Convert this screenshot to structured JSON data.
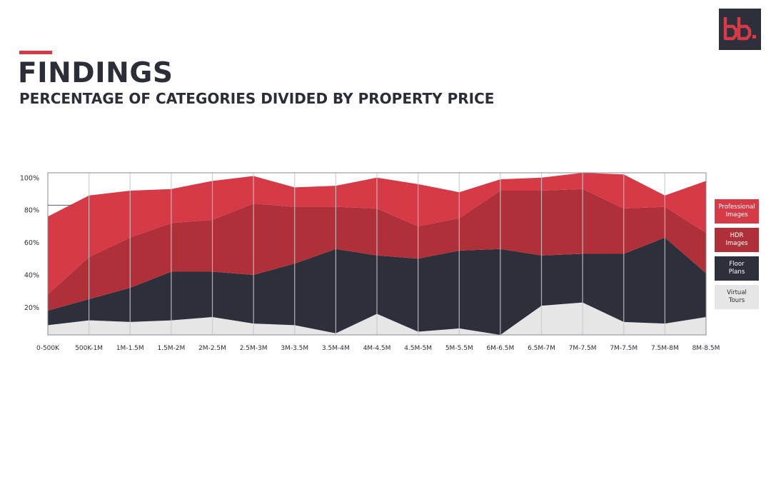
{
  "header": {
    "title": "FINDINGS",
    "subtitle": "PERCENTAGE OF CATEGORIES DIVIDED BY PROPERTY PRICE",
    "logo_text": "bb.",
    "accent_color": "#d63a47"
  },
  "chart_data": {
    "type": "area",
    "stacked": true,
    "title": "",
    "xlabel": "",
    "ylabel": "",
    "ylim": [
      3,
      103
    ],
    "yticks": [
      20,
      40,
      60,
      80,
      100
    ],
    "ytick_labels": [
      "20%",
      "40%",
      "60%",
      "80%",
      "100%"
    ],
    "grid": "vertical",
    "legend_position": "right",
    "categories": [
      "0-500K",
      "500K-1M",
      "1M-1.5M",
      "1.5M-2M",
      "2M-2.5M",
      "2.5M-3M",
      "3M-3.5M",
      "3.5M-4M",
      "4M-4.5M",
      "4.5M-5M",
      "5M-5.5M",
      "6M-6.5M",
      "6.5M-7M",
      "7M-7.5M",
      "7M-7.5M",
      "7.5M-8M",
      "8M-8.5M"
    ],
    "series": [
      {
        "name": "Virtual Tours",
        "color": "#e6e6e6",
        "text_color": "#2b2d38",
        "values": [
          6,
          9,
          8,
          9,
          11,
          7,
          6,
          1,
          13,
          2,
          4,
          0,
          18,
          20,
          8,
          7,
          11
        ]
      },
      {
        "name": "Floor Plans",
        "color": "#2d2f3b",
        "text_color": "#ffffff",
        "values": [
          9,
          13,
          21,
          30,
          28,
          30,
          38,
          52,
          36,
          45,
          48,
          53,
          31,
          30,
          42,
          53,
          27
        ]
      },
      {
        "name": "HDR Images",
        "color": "#b0303a",
        "text_color": "#ffffff",
        "values": [
          10,
          26,
          31,
          30,
          32,
          44,
          35,
          26,
          29,
          20,
          20,
          36,
          40,
          40,
          28,
          19,
          25
        ]
      },
      {
        "name": "Professional Images",
        "color": "#d63a47",
        "text_color": "#ffffff",
        "values": [
          48,
          38,
          29,
          21,
          24,
          17,
          12,
          13,
          19,
          26,
          16,
          7,
          8,
          10,
          21,
          7,
          32
        ]
      }
    ]
  }
}
